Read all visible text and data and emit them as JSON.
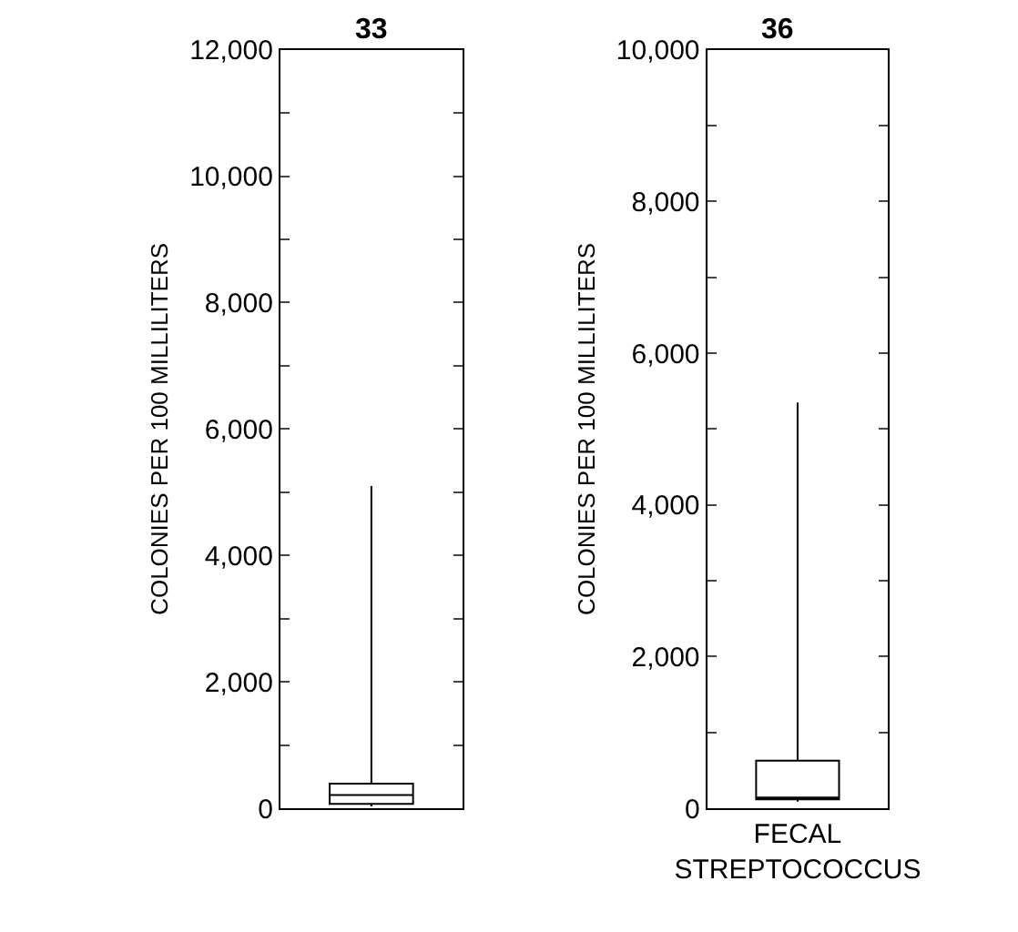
{
  "chart_data": [
    {
      "type": "box",
      "title": "33",
      "ylabel": "COLONIES PER 100 MILLILITERS",
      "categories": [
        null
      ],
      "boxes": [
        {
          "low": 30,
          "q1": 70,
          "median": 210,
          "q3": 390,
          "high": 5100
        }
      ],
      "color": "#000000",
      "ylim": [
        0,
        12000
      ],
      "yticks": [
        {
          "value": 0,
          "label": "0"
        },
        {
          "value": 1000,
          "label": null
        },
        {
          "value": 2000,
          "label": "2,000"
        },
        {
          "value": 3000,
          "label": null
        },
        {
          "value": 4000,
          "label": "4,000"
        },
        {
          "value": 5000,
          "label": null
        },
        {
          "value": 6000,
          "label": "6,000"
        },
        {
          "value": 7000,
          "label": null
        },
        {
          "value": 8000,
          "label": "8,000"
        },
        {
          "value": 9000,
          "label": null
        },
        {
          "value": 10000,
          "label": "10,000"
        },
        {
          "value": 11000,
          "label": null
        },
        {
          "value": 12000,
          "label": "12,000"
        }
      ]
    },
    {
      "type": "box",
      "title": "36",
      "ylabel": "COLONIES PER 100 MILLILITERS",
      "categories": [
        "FECAL STREPTOCOCCUS"
      ],
      "boxes": [
        {
          "low": 90,
          "q1": 120,
          "median": 120,
          "q3": 630,
          "high": 5350
        }
      ],
      "color": "#000000",
      "ylim": [
        0,
        10000
      ],
      "yticks": [
        {
          "value": 0,
          "label": "0"
        },
        {
          "value": 1000,
          "label": null
        },
        {
          "value": 2000,
          "label": "2,000"
        },
        {
          "value": 3000,
          "label": null
        },
        {
          "value": 4000,
          "label": "4,000"
        },
        {
          "value": 5000,
          "label": null
        },
        {
          "value": 6000,
          "label": "6,000"
        },
        {
          "value": 7000,
          "label": null
        },
        {
          "value": 8000,
          "label": "8,000"
        },
        {
          "value": 9000,
          "label": null
        },
        {
          "value": 10000,
          "label": "10,000"
        }
      ]
    }
  ]
}
